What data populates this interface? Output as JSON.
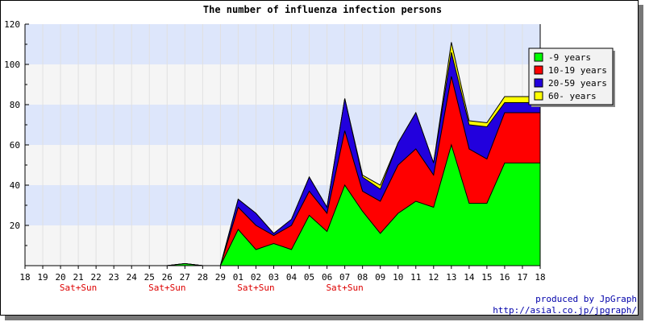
{
  "chart_data": {
    "type": "area",
    "stacked": true,
    "title": "The number of influenza infection persons",
    "x_labels": [
      "18",
      "19",
      "20",
      "21",
      "22",
      "23",
      "24",
      "25",
      "26",
      "27",
      "28",
      "29",
      "01",
      "02",
      "03",
      "04",
      "05",
      "06",
      "07",
      "08",
      "09",
      "10",
      "11",
      "12",
      "13",
      "14",
      "15",
      "16",
      "17",
      "18"
    ],
    "weekend_labels": [
      {
        "index": 3,
        "label": "Sat+Sun"
      },
      {
        "index": 8,
        "label": "Sat+Sun"
      },
      {
        "index": 13,
        "label": "Sat+Sun"
      },
      {
        "index": 18,
        "label": "Sat+Sun"
      }
    ],
    "ylim": [
      0,
      120
    ],
    "y_ticks": [
      20,
      40,
      60,
      80,
      100,
      120
    ],
    "grid": true,
    "legend_position": "top-right",
    "series": [
      {
        "name": "-9 years",
        "color": "#00ff00",
        "values": [
          0,
          0,
          0,
          0,
          0,
          0,
          0,
          0,
          0,
          1,
          0,
          0,
          18,
          8,
          11,
          8,
          25,
          17,
          40,
          27,
          16,
          26,
          32,
          29,
          60,
          31,
          31,
          51,
          51,
          51
        ]
      },
      {
        "name": "10-19 years",
        "color": "#ff0000",
        "values": [
          0,
          0,
          0,
          0,
          0,
          0,
          0,
          0,
          0,
          0,
          0,
          0,
          11,
          12,
          4,
          12,
          12,
          9,
          27,
          10,
          16,
          24,
          26,
          16,
          34,
          27,
          22,
          25,
          25,
          25
        ]
      },
      {
        "name": "20-59 years",
        "color": "#2200dd",
        "values": [
          0,
          0,
          0,
          0,
          0,
          0,
          0,
          0,
          0,
          0,
          0,
          0,
          4,
          6,
          1,
          3,
          7,
          3,
          16,
          7,
          6,
          11,
          18,
          6,
          12,
          12,
          16,
          5,
          5,
          5
        ]
      },
      {
        "name": "60- years",
        "color": "#ffff00",
        "values": [
          0,
          0,
          0,
          0,
          0,
          0,
          0,
          0,
          0,
          0,
          0,
          0,
          0,
          0,
          0,
          0,
          0,
          0,
          0,
          1,
          2,
          0,
          0,
          0,
          5,
          2,
          2,
          3,
          3,
          3
        ]
      }
    ]
  },
  "credits": {
    "line1": "produced by JpGraph",
    "line2": "http://asial.co.jp/jpgraph/"
  }
}
